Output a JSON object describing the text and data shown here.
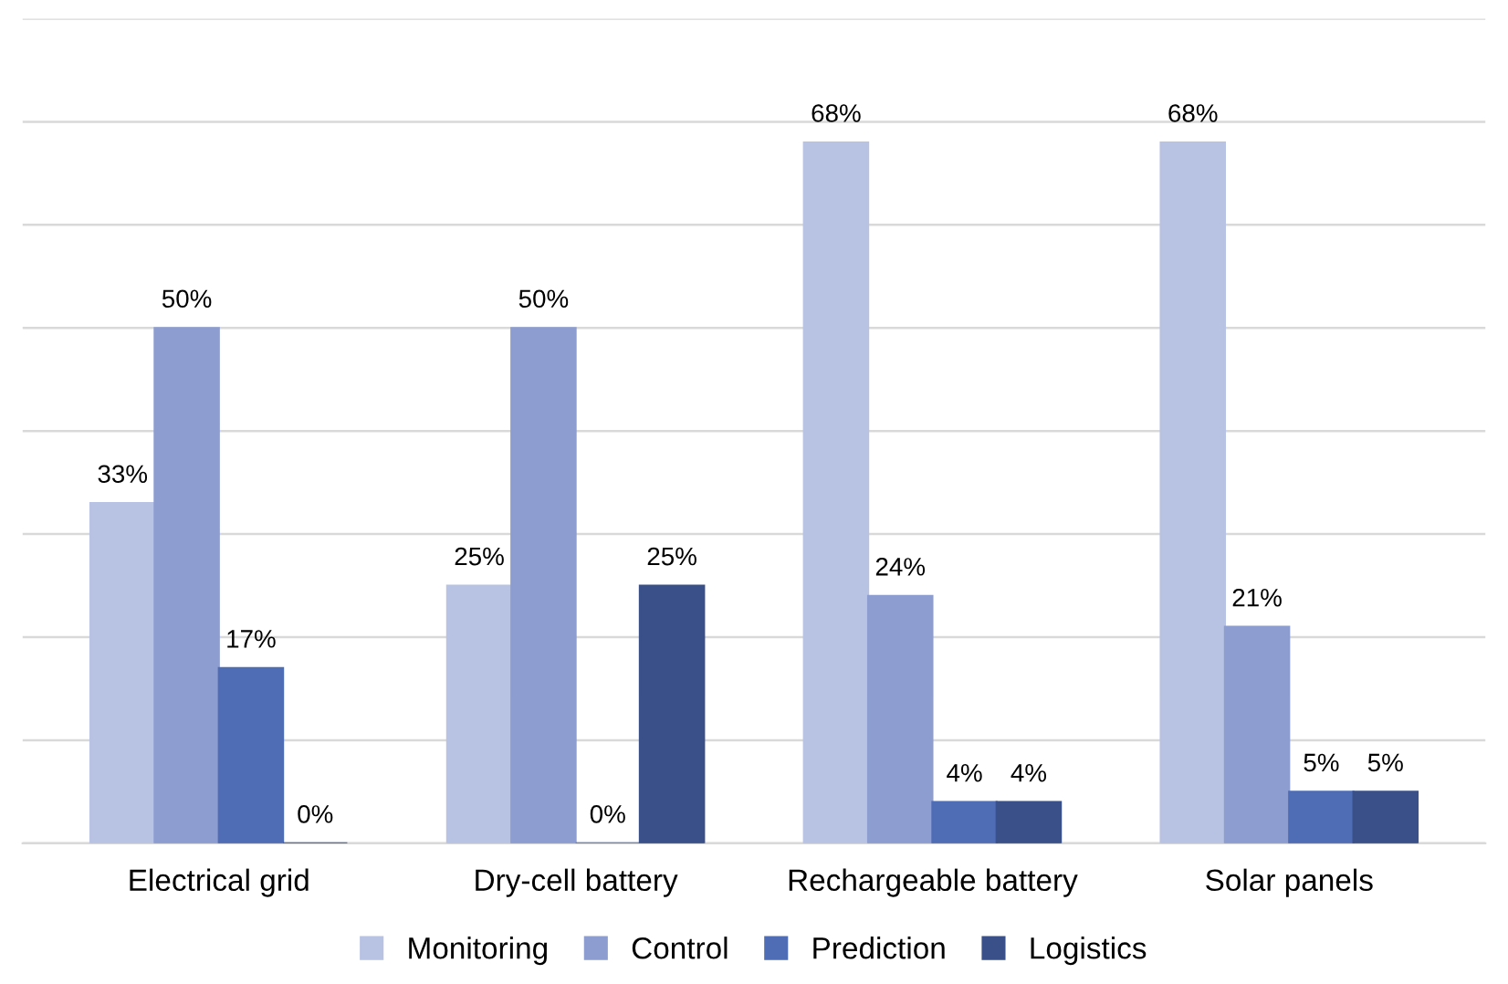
{
  "chart_data": {
    "type": "bar",
    "categories": [
      "Electrical grid",
      "Dry-cell battery",
      "Rechargeable battery",
      "Solar panels"
    ],
    "series": [
      {
        "name": "Monitoring",
        "color": "#b8c2e2",
        "values": [
          33,
          25,
          68,
          68
        ],
        "value_labels": [
          "33%",
          "25%",
          "68%",
          "68%"
        ]
      },
      {
        "name": "Control",
        "color": "#8d9dd0",
        "values": [
          50,
          50,
          24,
          21
        ],
        "value_labels": [
          "50%",
          "50%",
          "24%",
          "21%"
        ]
      },
      {
        "name": "Prediction",
        "color": "#4f6db5",
        "values": [
          17,
          0,
          4,
          5
        ],
        "value_labels": [
          "17%",
          "0%",
          "4%",
          "5%"
        ]
      },
      {
        "name": "Logistics",
        "color": "#3a5089",
        "values": [
          0,
          25,
          4,
          5
        ],
        "value_labels": [
          "0%",
          "25%",
          "4%",
          "5%"
        ]
      }
    ],
    "ylim": [
      0,
      80
    ],
    "yticks": [
      {
        "value": 0,
        "label": null
      },
      {
        "value": 10,
        "label": null
      },
      {
        "value": 20,
        "label": null
      },
      {
        "value": 30,
        "label": null
      },
      {
        "value": 40,
        "label": null
      },
      {
        "value": 50,
        "label": null
      },
      {
        "value": 60,
        "label": null
      },
      {
        "value": 70,
        "label": null
      },
      {
        "value": 80,
        "label": null
      }
    ],
    "tick_labels": "x",
    "grid": "y",
    "legend": "bottom"
  }
}
